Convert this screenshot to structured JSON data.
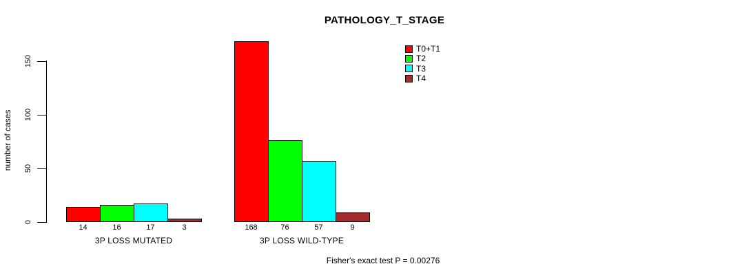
{
  "chart_data": {
    "type": "bar",
    "title": "PATHOLOGY_T_STAGE",
    "ylabel": "number of cases",
    "xlabel": "",
    "yticks": [
      0,
      50,
      100,
      150
    ],
    "ylim": [
      0,
      172
    ],
    "grid": false,
    "legend_position": "top-right",
    "categories": [
      "3P LOSS MUTATED",
      "3P LOSS WILD-TYPE"
    ],
    "series": [
      {
        "name": "T0+T1",
        "color": "#ff0000",
        "values": [
          14,
          168
        ]
      },
      {
        "name": "T2",
        "color": "#00ff00",
        "values": [
          16,
          76
        ]
      },
      {
        "name": "T3",
        "color": "#00ffff",
        "values": [
          17,
          57
        ]
      },
      {
        "name": "T4",
        "color": "#a52a2a",
        "values": [
          3,
          9
        ]
      }
    ],
    "annotation": "Fisher's exact test P = 0.00276",
    "colors": {
      "background": "#ffffff",
      "text": "#000000",
      "axis": "#000000",
      "bar_border": "#000000"
    }
  }
}
